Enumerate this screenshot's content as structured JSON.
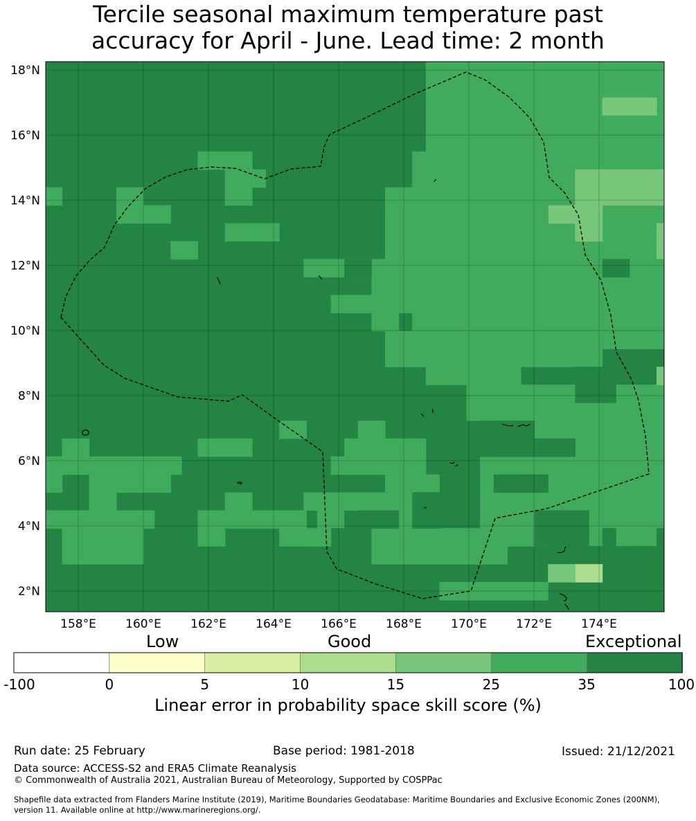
{
  "title_line1": "Tercile seasonal maximum temperature past",
  "title_line2": "accuracy for April - June. Lead time: 2 month",
  "map": {
    "lon_ticks": [
      "158°E",
      "160°E",
      "162°E",
      "164°E",
      "166°E",
      "168°E",
      "170°E",
      "172°E",
      "174°E"
    ],
    "lat_ticks": [
      "18°N",
      "16°N",
      "14°N",
      "12°N",
      "10°N",
      "8°N",
      "6°N",
      "4°N",
      "2°N"
    ],
    "colors": {
      "exceptional": "#238443",
      "high": "#41ab5d",
      "mid": "#78c679",
      "low_good": "#addd8e"
    }
  },
  "colorbar": {
    "categories": [
      "Low",
      "Good",
      "Exceptional"
    ],
    "ticks": [
      "-100",
      "0",
      "5",
      "10",
      "15",
      "25",
      "35",
      "100"
    ],
    "colors": [
      "#ffffff",
      "#ffffcc",
      "#d9f0a3",
      "#addd8e",
      "#78c679",
      "#41ab5d",
      "#238443"
    ],
    "label": "Linear error in probability space skill score (%)"
  },
  "footer": {
    "run_date": "Run date: 25 February",
    "base_period": "Base period: 1981-2018",
    "issued": "Issued: 21/12/2021",
    "data_source": "Data source: ACCESS-S2 and ERA5 Climate Reanalysis",
    "copyright": "© Commonwealth of Australia 2021, Australian Bureau of Meteorology, Supported by COSPPac",
    "shapefile_line1": "Shapefile data extracted from Flanders Marine Institute (2019), Maritime Boundaries Geodatabase: Maritime Boundaries and Exclusive Economic Zones (200NM),",
    "shapefile_line2": "version 11. Available online at http://www.marineregions.org/."
  }
}
